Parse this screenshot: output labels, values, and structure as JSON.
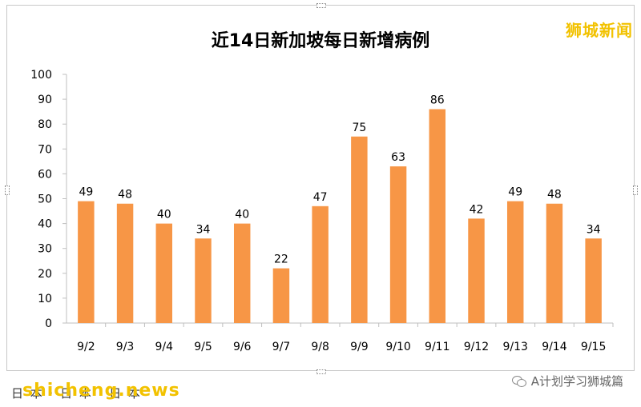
{
  "watermark_top": "狮城新闻",
  "footer": {
    "left_text": "日 本 · 日 本 · 日 本",
    "logo_text": "shicheng.news",
    "account_text": "A计划学习狮城篇",
    "account_icon": "wechat-icon"
  },
  "colors": {
    "bar": "#f79646",
    "axis": "#bfbfbf",
    "title": "#000000"
  },
  "chart_data": {
    "type": "bar",
    "title": "近14日新加坡每日新增病例",
    "xlabel": "",
    "ylabel": "",
    "categories": [
      "9/2",
      "9/3",
      "9/4",
      "9/5",
      "9/6",
      "9/7",
      "9/8",
      "9/9",
      "9/10",
      "9/11",
      "9/12",
      "9/13",
      "9/14",
      "9/15"
    ],
    "values": [
      49,
      48,
      40,
      34,
      40,
      22,
      47,
      75,
      63,
      86,
      42,
      49,
      48,
      34
    ],
    "ylim": [
      0,
      100
    ],
    "yticks": [
      0,
      10,
      20,
      30,
      40,
      50,
      60,
      70,
      80,
      90,
      100
    ],
    "data_labels": true,
    "grid": false,
    "legend": "none"
  }
}
